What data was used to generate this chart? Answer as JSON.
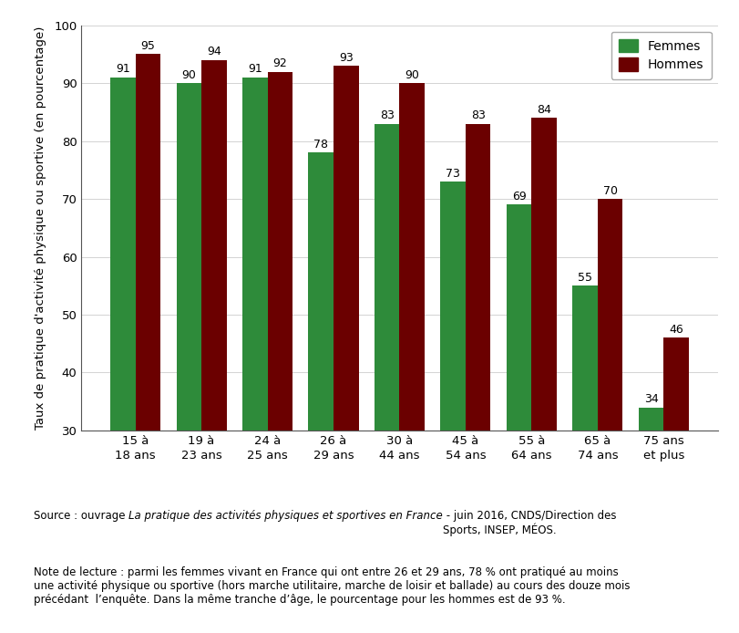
{
  "categories": [
    "15 à\n18 ans",
    "19 à\n23 ans",
    "24 à\n25 ans",
    "26 à\n29 ans",
    "30 à\n44 ans",
    "45 à\n54 ans",
    "55 à\n64 ans",
    "65 à\n74 ans",
    "75 ans\net plus"
  ],
  "femmes": [
    91,
    90,
    91,
    78,
    83,
    73,
    69,
    55,
    34
  ],
  "hommes": [
    95,
    94,
    92,
    93,
    90,
    83,
    84,
    70,
    46
  ],
  "femmes_color": "#2e8b3a",
  "hommes_color": "#6b0000",
  "ylabel": "Taux de pratique d'activité physique ou sportive (en pourcentage)",
  "ylim": [
    30,
    100
  ],
  "yticks": [
    30,
    40,
    50,
    60,
    70,
    80,
    90,
    100
  ],
  "legend_femmes": "Femmes",
  "legend_hommes": "Hommes",
  "source_normal1": "Source : ouvrage ",
  "source_italic": "La pratique des activités physiques et sportives en France",
  "source_normal2": " - juin 2016, CNDS/Direction des\nSports, INSEP, MÉOS.",
  "note_text": "Note de lecture : parmi les femmes vivant en France qui ont entre 26 et 29 ans, 78 % ont pratiqué au moins\nune activité physique ou sportive (hors marche utilitaire, marche de loisir et ballade) au cours des douze mois\nprécédant  l’enquête. Dans la même tranche d’âge, le pourcentage pour les hommes est de 93 %.",
  "bar_width": 0.38,
  "label_fontsize": 9,
  "tick_fontsize": 9.5,
  "ylabel_fontsize": 9.5,
  "legend_fontsize": 10,
  "text_fontsize": 8.5
}
